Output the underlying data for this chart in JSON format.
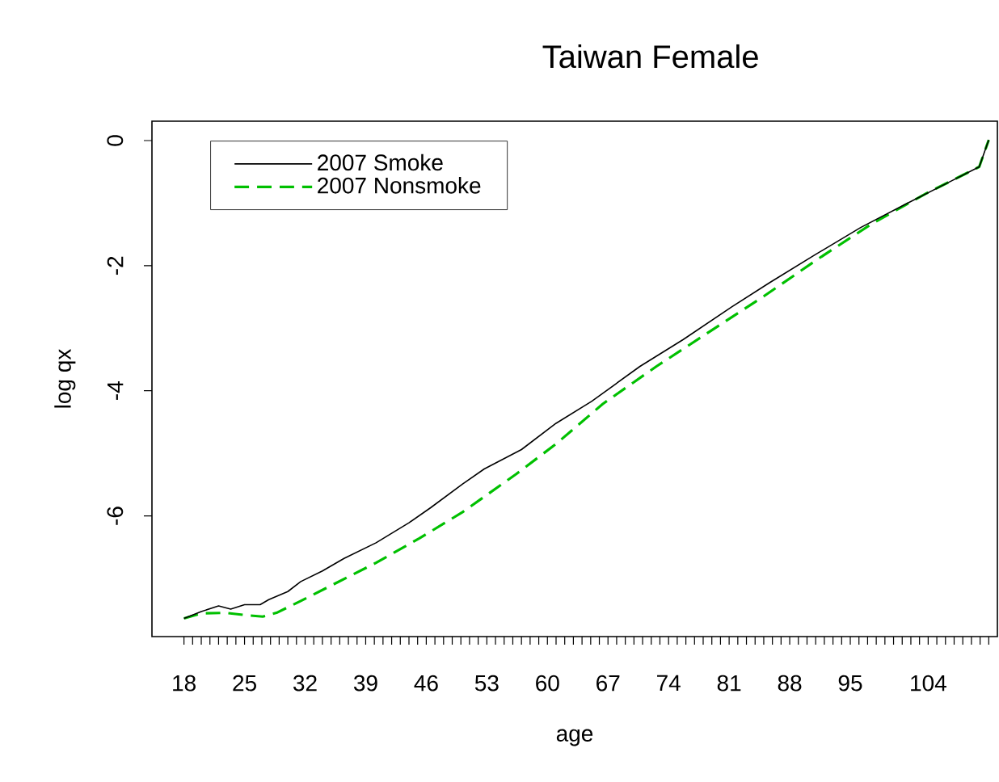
{
  "chart_data": {
    "type": "line",
    "title": "Taiwan Female",
    "xlabel": "age",
    "ylabel": "log qx",
    "xlim": [
      14.3,
      112
    ],
    "ylim": [
      -7.93,
      0.31
    ],
    "yticks": [
      0,
      -2,
      -4,
      -6
    ],
    "xticks": [
      18,
      {
        "value": 19,
        "label": null
      },
      {
        "value": 20,
        "label": null
      },
      {
        "value": 21,
        "label": null
      },
      {
        "value": 22,
        "label": null
      },
      {
        "value": 23,
        "label": null
      },
      {
        "value": 24,
        "label": null
      },
      25,
      {
        "value": 26,
        "label": null
      },
      {
        "value": 27,
        "label": null
      },
      {
        "value": 28,
        "label": null
      },
      {
        "value": 29,
        "label": null
      },
      {
        "value": 30,
        "label": null
      },
      {
        "value": 31,
        "label": null
      },
      32,
      {
        "value": 33,
        "label": null
      },
      {
        "value": 34,
        "label": null
      },
      {
        "value": 35,
        "label": null
      },
      {
        "value": 36,
        "label": null
      },
      {
        "value": 37,
        "label": null
      },
      {
        "value": 38,
        "label": null
      },
      39,
      {
        "value": 40,
        "label": null
      },
      {
        "value": 41,
        "label": null
      },
      {
        "value": 42,
        "label": null
      },
      {
        "value": 43,
        "label": null
      },
      {
        "value": 44,
        "label": null
      },
      {
        "value": 45,
        "label": null
      },
      46,
      {
        "value": 47,
        "label": null
      },
      {
        "value": 48,
        "label": null
      },
      {
        "value": 49,
        "label": null
      },
      {
        "value": 50,
        "label": null
      },
      {
        "value": 51,
        "label": null
      },
      {
        "value": 52,
        "label": null
      },
      53,
      {
        "value": 54,
        "label": null
      },
      {
        "value": 55,
        "label": null
      },
      {
        "value": 56,
        "label": null
      },
      {
        "value": 57,
        "label": null
      },
      {
        "value": 58,
        "label": null
      },
      {
        "value": 59,
        "label": null
      },
      60,
      {
        "value": 61,
        "label": null
      },
      {
        "value": 62,
        "label": null
      },
      {
        "value": 63,
        "label": null
      },
      {
        "value": 64,
        "label": null
      },
      {
        "value": 65,
        "label": null
      },
      {
        "value": 66,
        "label": null
      },
      67,
      {
        "value": 68,
        "label": null
      },
      {
        "value": 69,
        "label": null
      },
      {
        "value": 70,
        "label": null
      },
      {
        "value": 71,
        "label": null
      },
      {
        "value": 72,
        "label": null
      },
      {
        "value": 73,
        "label": null
      },
      74,
      {
        "value": 75,
        "label": null
      },
      {
        "value": 76,
        "label": null
      },
      {
        "value": 77,
        "label": null
      },
      {
        "value": 78,
        "label": null
      },
      {
        "value": 79,
        "label": null
      },
      {
        "value": 80,
        "label": null
      },
      81,
      {
        "value": 82,
        "label": null
      },
      {
        "value": 83,
        "label": null
      },
      {
        "value": 84,
        "label": null
      },
      {
        "value": 85,
        "label": null
      },
      {
        "value": 86,
        "label": null
      },
      {
        "value": 87,
        "label": null
      },
      88,
      {
        "value": 89,
        "label": null
      },
      {
        "value": 90,
        "label": null
      },
      {
        "value": 91,
        "label": null
      },
      {
        "value": 92,
        "label": null
      },
      {
        "value": 93,
        "label": null
      },
      {
        "value": 94,
        "label": null
      },
      95,
      {
        "value": 96,
        "label": null
      },
      {
        "value": 97,
        "label": null
      },
      {
        "value": 98,
        "label": null
      },
      {
        "value": 99,
        "label": null
      },
      {
        "value": 100,
        "label": null
      },
      {
        "value": 101,
        "label": null
      },
      {
        "value": 102,
        "label": null
      },
      {
        "value": 103,
        "label": null
      },
      104,
      {
        "value": 105,
        "label": null
      },
      {
        "value": 106,
        "label": null
      },
      {
        "value": 107,
        "label": null
      },
      {
        "value": 108,
        "label": null
      },
      {
        "value": 109,
        "label": null
      },
      {
        "value": 110,
        "label": null
      },
      {
        "value": 111,
        "label": null
      }
    ],
    "legend": "top left",
    "series": [
      {
        "name": "2007 Smoke",
        "color": "#000000",
        "line_style": "solid",
        "x": [
          18,
          20,
          22,
          23.4,
          25,
          26.8,
          27.8,
          30,
          31.5,
          34,
          36.5,
          40.2,
          44,
          46.5,
          50.2,
          52.7,
          57,
          61,
          65.1,
          70.7,
          75.7,
          81.3,
          85.7,
          91,
          96.2,
          101.2,
          106.2,
          109.9,
          111
        ],
        "values": [
          -7.64,
          -7.53,
          -7.44,
          -7.49,
          -7.42,
          -7.42,
          -7.34,
          -7.21,
          -7.05,
          -6.88,
          -6.68,
          -6.43,
          -6.11,
          -5.87,
          -5.49,
          -5.25,
          -4.94,
          -4.52,
          -4.17,
          -3.61,
          -3.18,
          -2.66,
          -2.27,
          -1.82,
          -1.39,
          -1.03,
          -0.68,
          -0.42,
          0.01
        ]
      },
      {
        "name": "2007 Nonsmoke",
        "color": "#00c000",
        "line_style": "dashed",
        "x": [
          18,
          20,
          22.8,
          25.3,
          27.1,
          28.7,
          31.5,
          35.2,
          40.2,
          45.2,
          50.2,
          56.4,
          61,
          66.4,
          72.6,
          78.8,
          85,
          91.3,
          97.5,
          103.7,
          109.9,
          111
        ],
        "values": [
          -7.64,
          -7.56,
          -7.55,
          -7.59,
          -7.61,
          -7.55,
          -7.36,
          -7.1,
          -6.75,
          -6.36,
          -5.94,
          -5.33,
          -4.85,
          -4.21,
          -3.61,
          -3.05,
          -2.49,
          -1.89,
          -1.33,
          -0.85,
          -0.42,
          0.01
        ]
      }
    ]
  }
}
